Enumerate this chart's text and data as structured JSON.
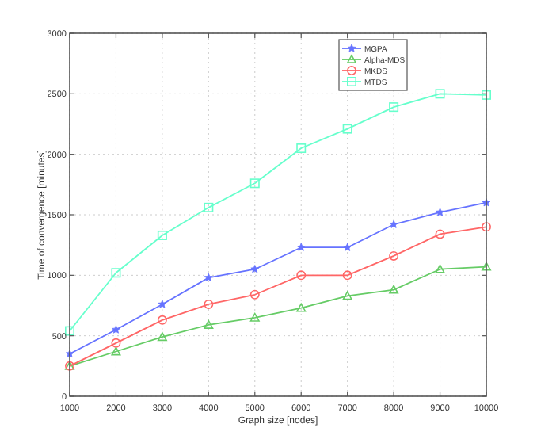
{
  "chart_data": {
    "type": "line",
    "xlabel": "Graph size [nodes]",
    "ylabel": "Time of convergence [minutes]",
    "x": [
      1000,
      2000,
      3000,
      4000,
      5000,
      6000,
      7000,
      8000,
      9000,
      10000
    ],
    "series": [
      {
        "name": "MGPA",
        "color": "#6673ff",
        "marker": "star",
        "values": [
          350,
          550,
          760,
          980,
          1050,
          1230,
          1230,
          1420,
          1520,
          1600
        ]
      },
      {
        "name": "Alpha-MDS",
        "color": "#66cc66",
        "marker": "triangle",
        "values": [
          250,
          370,
          490,
          590,
          650,
          730,
          830,
          880,
          1050,
          1070
        ]
      },
      {
        "name": "MKDS",
        "color": "#ff6666",
        "marker": "circle",
        "values": [
          250,
          440,
          630,
          760,
          840,
          1000,
          1000,
          1160,
          1340,
          1400
        ]
      },
      {
        "name": "MTDS",
        "color": "#66ffcc",
        "marker": "square",
        "values": [
          540,
          1020,
          1330,
          1560,
          1760,
          2050,
          2210,
          2390,
          2500,
          2490
        ]
      }
    ],
    "xlim": [
      1000,
      10000
    ],
    "xticks": [
      1000,
      2000,
      3000,
      4000,
      5000,
      6000,
      7000,
      8000,
      9000,
      10000
    ],
    "ylim": [
      0,
      3000
    ],
    "yticks": [
      0,
      500,
      1000,
      1500,
      2000,
      2500,
      3000
    ],
    "grid": true,
    "legend": "top right",
    "line_style": "solid"
  }
}
